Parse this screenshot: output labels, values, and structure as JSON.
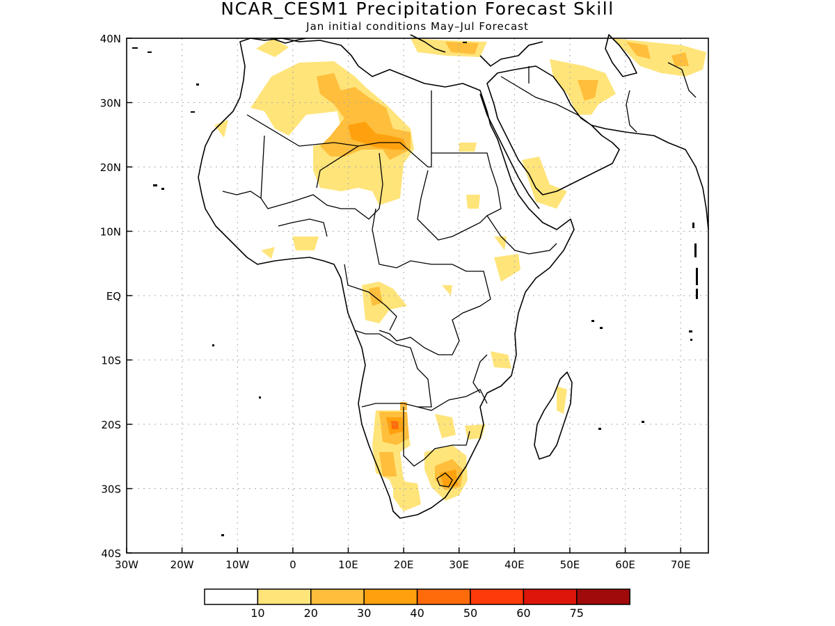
{
  "title": "NCAR_CESM1 Precipitation Forecast Skill",
  "subtitle": "Jan initial conditions  May–Jul Forecast",
  "axes": {
    "x_ticks": [
      "30W",
      "20W",
      "10W",
      "0",
      "10E",
      "20E",
      "30E",
      "40E",
      "50E",
      "60E",
      "70E"
    ],
    "y_ticks": [
      "40N",
      "30N",
      "20N",
      "10N",
      "EQ",
      "10S",
      "20S",
      "30S",
      "40S"
    ],
    "x_range": [
      -30,
      75
    ],
    "y_range": [
      -40,
      40
    ],
    "grid": true
  },
  "colorbar": {
    "labels": [
      "10",
      "20",
      "30",
      "40",
      "50",
      "60",
      "75"
    ],
    "colors": [
      "#ffffff",
      "#ffe47a",
      "#ffbe3b",
      "#ffa10e",
      "#ff6b0a",
      "#ff3a0a",
      "#dd150a",
      "#a10a0a"
    ]
  },
  "map_data": {
    "region": "Africa, Middle East",
    "fill_colors": {
      "10-20": "#ffe47a",
      "20-30": "#ffbe3b",
      "30-40": "#ffa10e",
      "40-50": "#ff6b0a"
    }
  }
}
